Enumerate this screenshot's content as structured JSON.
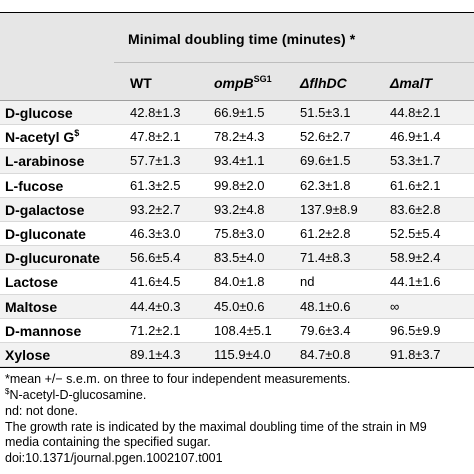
{
  "table": {
    "group_header": "Minimal doubling time (minutes) *",
    "columns": [
      {
        "base": "WT",
        "sup": "",
        "italic": false
      },
      {
        "base": "ompB",
        "sup": "SG1",
        "italic": true
      },
      {
        "base": "ΔflhDC",
        "sup": "",
        "italic": true
      },
      {
        "base": "ΔmalT",
        "sup": "",
        "italic": true
      }
    ],
    "rows": [
      {
        "label": "D-glucose",
        "label_sup": "",
        "values": [
          "42.8±1.3",
          "66.9±1.5",
          "51.5±3.1",
          "44.8±2.1"
        ]
      },
      {
        "label": "N-acetyl G",
        "label_sup": "$",
        "values": [
          "47.8±2.1",
          "78.2±4.3",
          "52.6±2.7",
          "46.9±1.4"
        ]
      },
      {
        "label": "L-arabinose",
        "label_sup": "",
        "values": [
          "57.7±1.3",
          "93.4±1.1",
          "69.6±1.5",
          "53.3±1.7"
        ]
      },
      {
        "label": "L-fucose",
        "label_sup": "",
        "values": [
          "61.3±2.5",
          "99.8±2.0",
          "62.3±1.8",
          "61.6±2.1"
        ]
      },
      {
        "label": "D-galactose",
        "label_sup": "",
        "values": [
          "93.2±2.7",
          "93.2±4.8",
          "137.9±8.9",
          "83.6±2.8"
        ]
      },
      {
        "label": "D-gluconate",
        "label_sup": "",
        "values": [
          "46.3±3.0",
          "75.8±3.0",
          "61.2±2.8",
          "52.5±5.4"
        ]
      },
      {
        "label": "D-glucuronate",
        "label_sup": "",
        "values": [
          "56.6±5.4",
          "83.5±4.0",
          "71.4±8.3",
          "58.9±2.4"
        ]
      },
      {
        "label": "Lactose",
        "label_sup": "",
        "values": [
          "41.6±4.5",
          "84.0±1.8",
          "nd",
          "44.1±1.6"
        ]
      },
      {
        "label": "Maltose",
        "label_sup": "",
        "values": [
          "44.4±0.3",
          "45.0±0.6",
          "48.1±0.6",
          "∞"
        ]
      },
      {
        "label": "D-mannose",
        "label_sup": "",
        "values": [
          "71.2±2.1",
          "108.4±5.1",
          "79.6±3.4",
          "96.5±9.9"
        ]
      },
      {
        "label": "Xylose",
        "label_sup": "",
        "values": [
          "89.1±4.3",
          "115.9±4.0",
          "84.7±0.8",
          "91.8±3.7"
        ]
      }
    ]
  },
  "footnotes": {
    "line1": "*mean +/− s.e.m. on three to four independent measurements.",
    "line2_sup": "$",
    "line2": "N-acetyl-D-glucosamine.",
    "line3": "nd: not done.",
    "line4": "The growth rate is indicated by the maximal doubling time of the strain in M9",
    "line5": "media containing the specified sugar.",
    "line6": "doi:10.1371/journal.pgen.1002107.t001"
  }
}
